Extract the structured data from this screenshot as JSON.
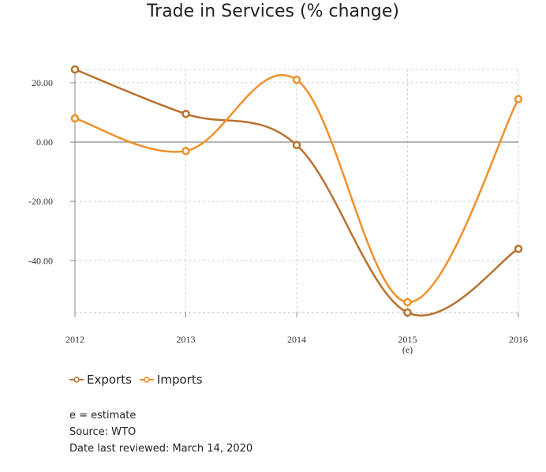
{
  "chart_data": {
    "type": "line",
    "title": "Trade in Services (% change)",
    "categories": [
      "2012",
      "2013",
      "2014",
      "2015",
      "2016"
    ],
    "category_sublabels": [
      "",
      "",
      "",
      "(e)",
      ""
    ],
    "series": [
      {
        "name": "Exports",
        "color": "#b8712f",
        "values": [
          24.5,
          9.5,
          -1.0,
          -57.5,
          -36.0
        ]
      },
      {
        "name": "Imports",
        "color": "#f0902b",
        "values": [
          8.0,
          -3.0,
          21.0,
          -54.0,
          14.5
        ]
      }
    ],
    "ylim": [
      -57.5,
      24.5
    ],
    "yticks": [
      "20.00",
      "0.00",
      "-20.00",
      "-40.00"
    ],
    "ytick_values": [
      20,
      0,
      -20,
      -40
    ],
    "grid": true,
    "legend_position": "bottom-left"
  },
  "notes": {
    "estimate": "e = estimate",
    "source": "Source: WTO",
    "reviewed": "Date last reviewed: March 14, 2020"
  }
}
